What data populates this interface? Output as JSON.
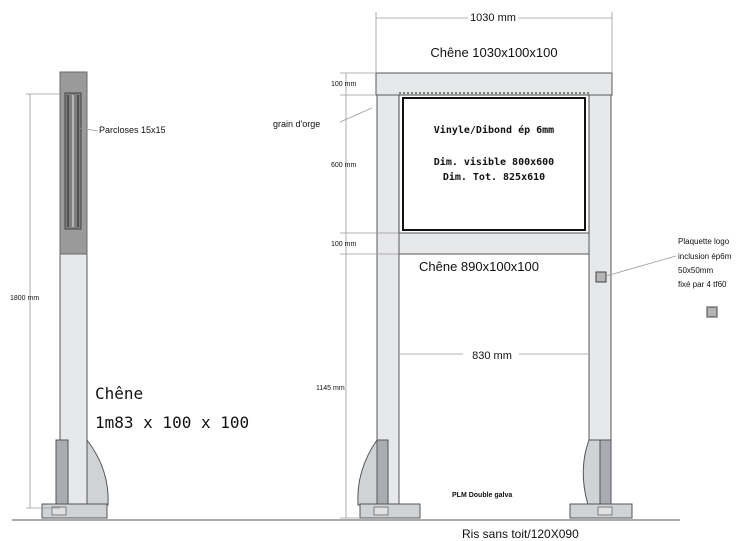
{
  "labels": {
    "top_width": "1030 mm",
    "top_beam": "Chêne 1030x100x100",
    "top_beam_height": "100 mm",
    "grain": "grain d'orge",
    "panel_height": "600 mm",
    "panel_line1": "Vinyle/Dibond ép 6mm",
    "panel_line2": "Dim. visible 800x600",
    "panel_line3": "Dim. Tot. 825x610",
    "mid_beam_height": "100 mm",
    "mid_beam": "Chêne 890x100x100",
    "inner_width": "830 mm",
    "leg_height": "1145 mm",
    "foot_label": "PLM Double galva",
    "plaquette_line1": "Plaquette logo",
    "plaquette_line2": "inclusion ép6m",
    "plaquette_line3": "50x50mm",
    "plaquette_line4": "fixé par 4 tf60",
    "parcloses": "Parcloses 15x15",
    "total_height": "1800 mm",
    "chene_title": "Chêne",
    "chene_dims": "1m83 x 100 x 100",
    "caption": "Ris sans toit/120X090"
  },
  "colors": {
    "wood": "#e6e8ea",
    "dark_wood": "#9a9a9a",
    "dimension_line": "#9a9a9a",
    "foot_metal": "#cfd3d6"
  }
}
